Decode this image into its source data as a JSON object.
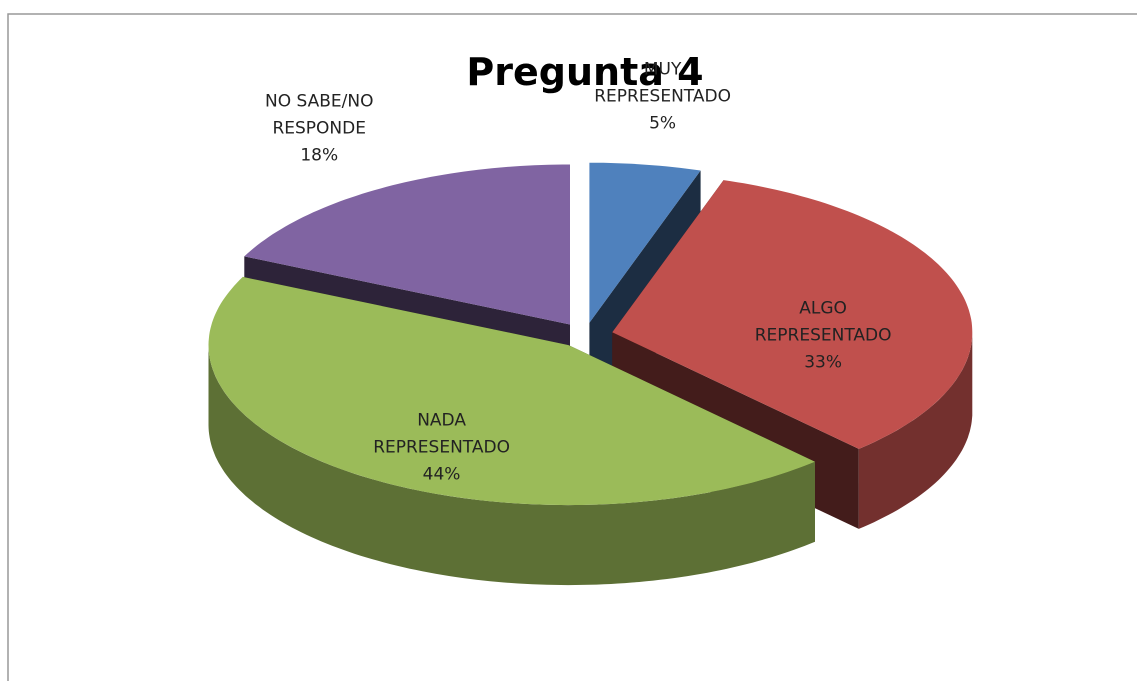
{
  "chart_data": {
    "type": "pie",
    "title": "Pregunta 4",
    "categories": [
      "MUY REPRESENTADO",
      "ALGO REPRESENTADO",
      "NADA REPRESENTADO",
      "NO SABE/NO RESPONDE"
    ],
    "values": [
      5,
      33,
      44,
      18
    ],
    "value_labels": [
      "5%",
      "33%",
      "44%",
      "18%"
    ],
    "colors": [
      "#4f81bd",
      "#c0504d",
      "#9bbb59",
      "#8064a2"
    ]
  }
}
